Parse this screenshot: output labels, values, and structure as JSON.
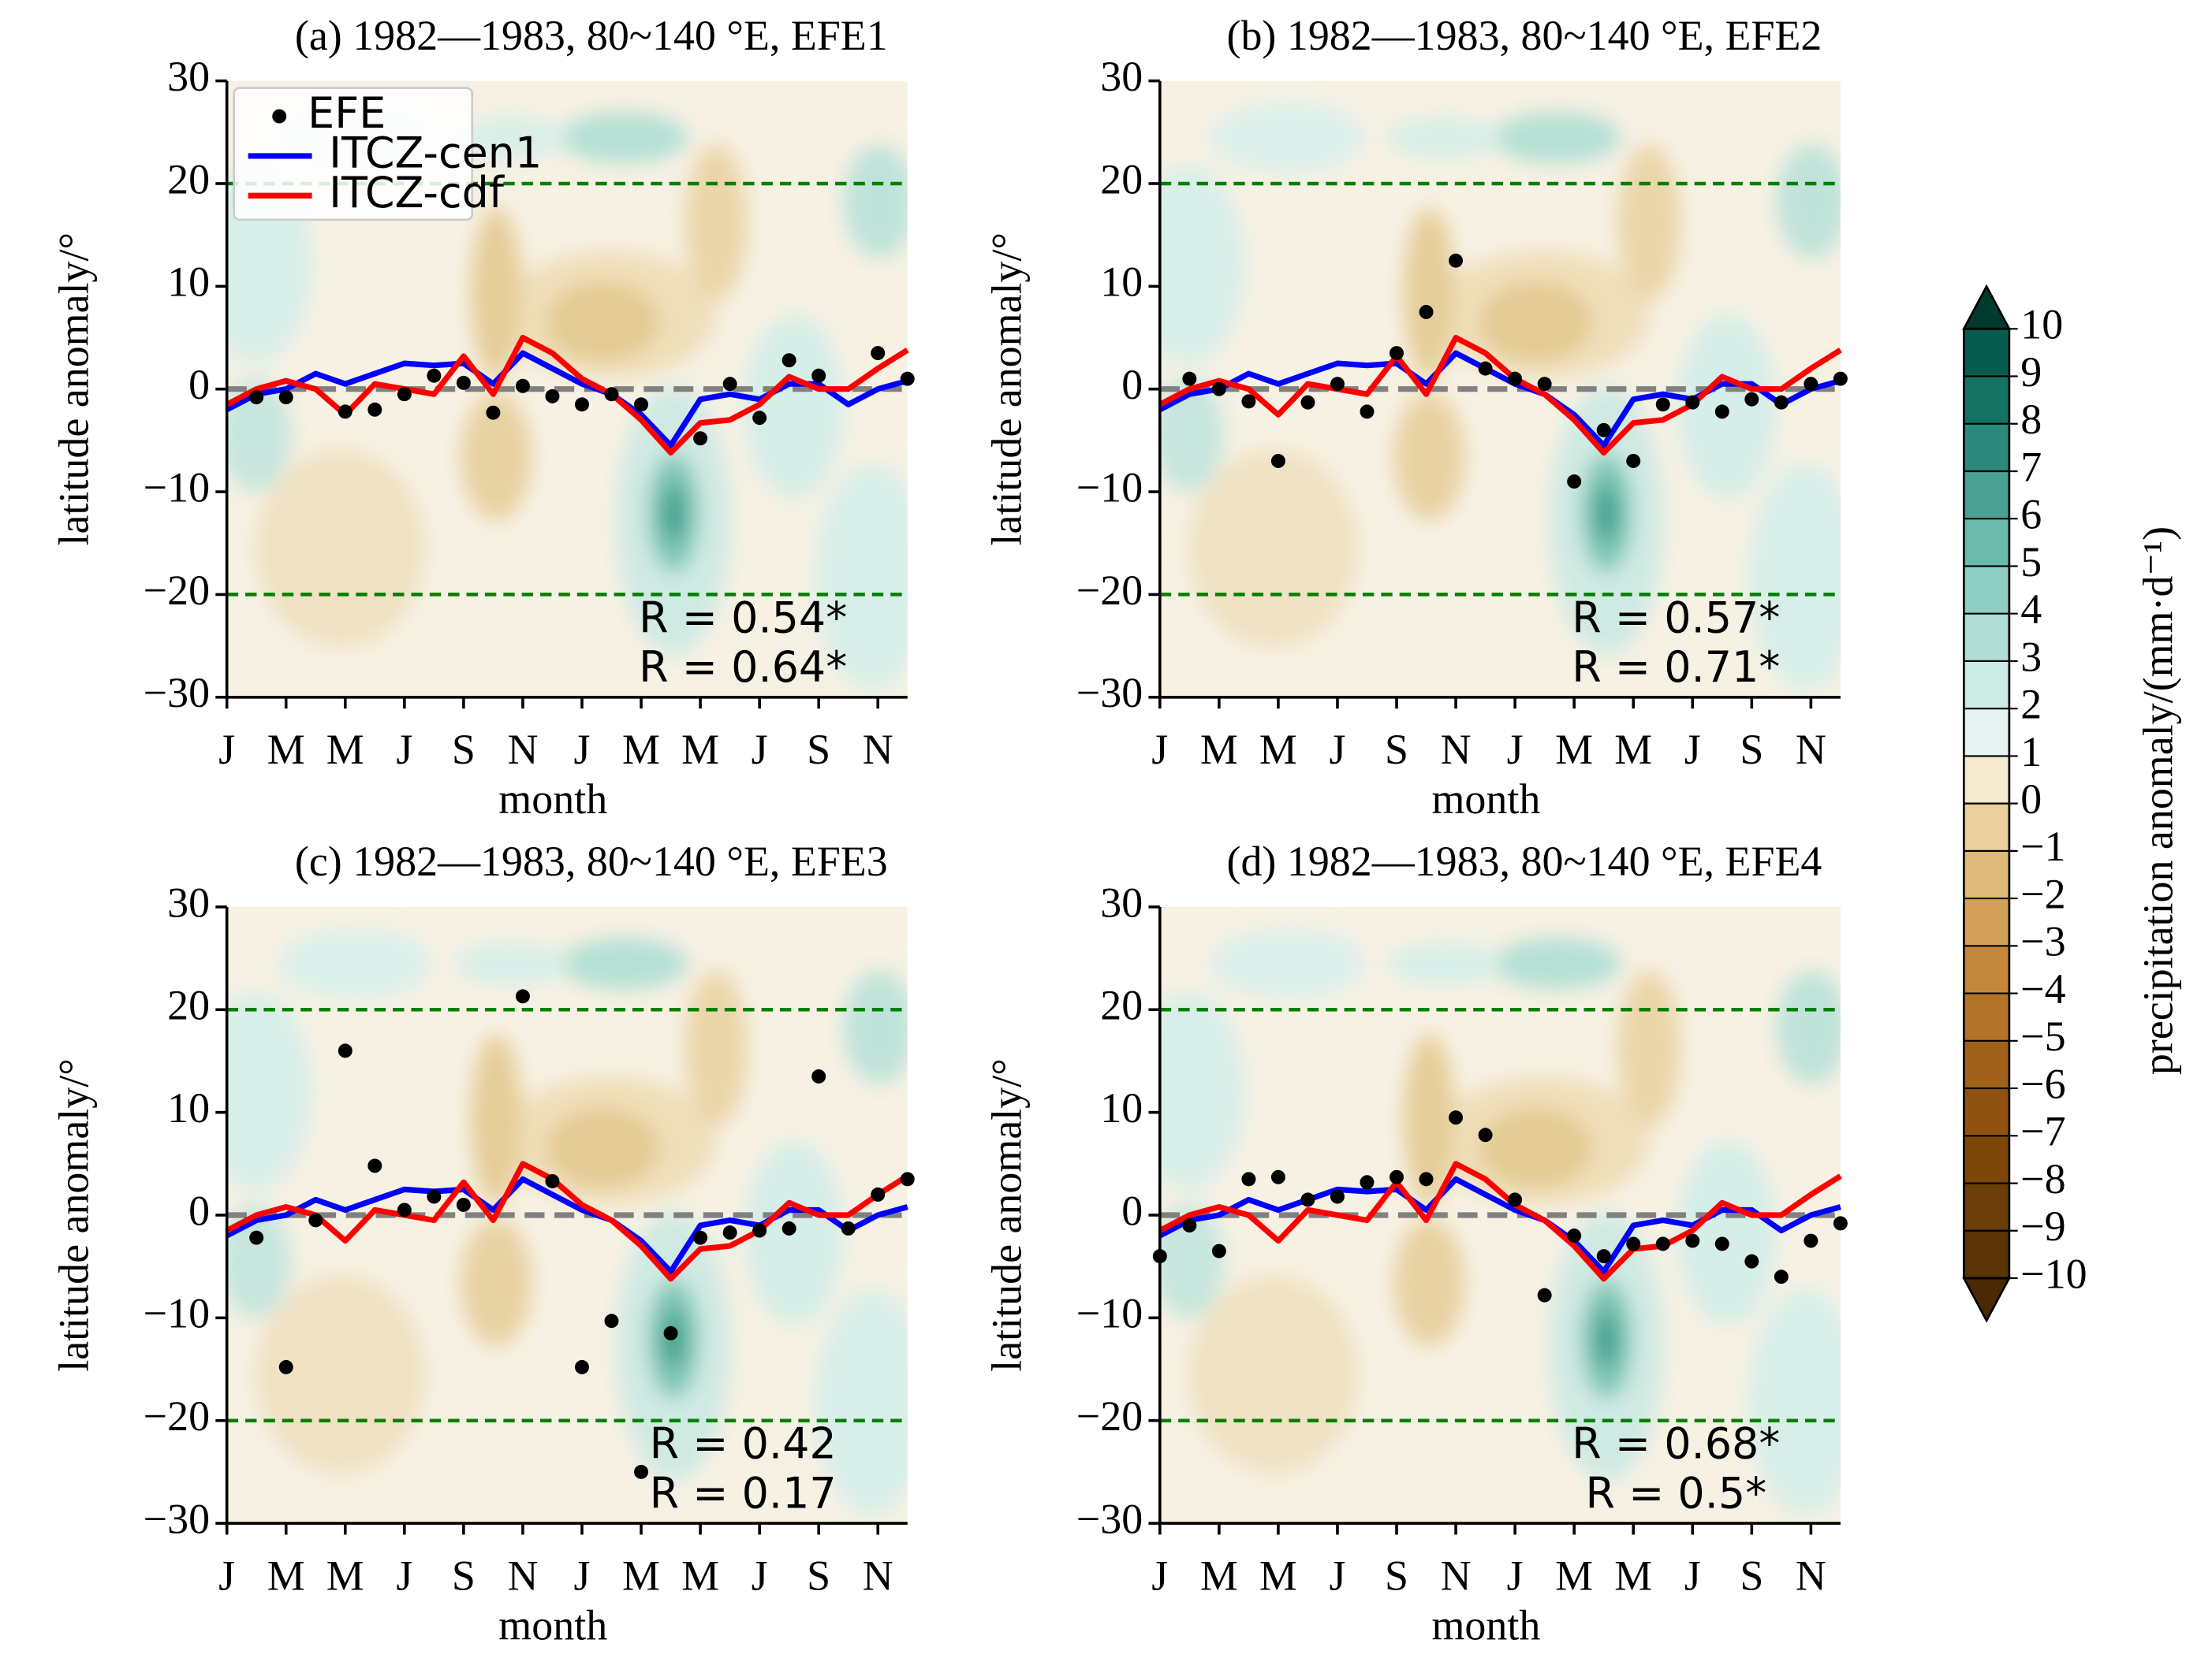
{
  "chart_data": [
    {
      "type": "line",
      "title": "(a) 1982—1983, 80~140 °E, EFE1",
      "x_label": "month",
      "y_label": "latitude anomaly/°",
      "categories": [
        "J",
        null,
        "M",
        null,
        "M",
        null,
        "J",
        null,
        "S",
        null,
        "N",
        null,
        "J",
        null,
        "M",
        null,
        "M",
        null,
        "J",
        null,
        "S",
        null,
        "N",
        null
      ],
      "ylim": [
        -30,
        30
      ],
      "yticks": [
        {
          "value": -30,
          "label": "−30"
        },
        {
          "value": -20,
          "label": "−20"
        },
        {
          "value": -10,
          "label": "−10"
        },
        0,
        10,
        20,
        30
      ],
      "series": [
        {
          "name": "EFE",
          "type": "scatter",
          "color": "#000000",
          "values": [
            null,
            -0.8,
            -0.8,
            null,
            -2.2,
            -2,
            -0.5,
            1.3,
            0.6,
            -2.3,
            0.3,
            -0.7,
            -1.5,
            -0.5,
            -1.5,
            null,
            -4.8,
            0.5,
            -2.8,
            2.8,
            1.3,
            null,
            3.5,
            1
          ]
        },
        {
          "name": "ITCZ-cen1",
          "color": "#0000ff",
          "values": [
            -2,
            -0.5,
            0,
            1.5,
            0.5,
            1.5,
            2.5,
            2.3,
            2.5,
            0.5,
            3.5,
            2,
            0.5,
            -0.5,
            -2.5,
            -5.5,
            -1,
            -0.5,
            -1,
            0.5,
            0.5,
            -1.5,
            0,
            0.8
          ]
        },
        {
          "name": "ITCZ-cdf",
          "color": "#ff0000",
          "values": [
            -1.5,
            0,
            0.8,
            0,
            -2.5,
            0.5,
            0,
            -0.5,
            3.2,
            -0.5,
            5,
            3.5,
            1,
            -0.5,
            -3,
            -6.2,
            -3.3,
            -3,
            -1.5,
            1.2,
            0,
            0,
            2,
            3.8
          ]
        }
      ],
      "reference_lines": [
        {
          "value": 20,
          "color": "#008000"
        },
        {
          "value": -20,
          "color": "#008000"
        },
        {
          "value": 0,
          "color": "#808080"
        }
      ],
      "annotations": [
        {
          "text": "R = 0.54*",
          "color": "#0000ff"
        },
        {
          "text": "R = 0.64*",
          "color": "#ff0000"
        }
      ],
      "legend": "upper left"
    },
    {
      "type": "line",
      "title": "(b) 1982—1983, 80~140 °E, EFE2",
      "x_label": "month",
      "y_label": "latitude anomaly/°",
      "categories": [
        "J",
        null,
        "M",
        null,
        "M",
        null,
        "J",
        null,
        "S",
        null,
        "N",
        null,
        "J",
        null,
        "M",
        null,
        "M",
        null,
        "J",
        null,
        "S",
        null,
        "N",
        null
      ],
      "ylim": [
        -30,
        30
      ],
      "yticks": [
        {
          "value": -30,
          "label": "−30"
        },
        {
          "value": -20,
          "label": "−20"
        },
        {
          "value": -10,
          "label": "−10"
        },
        0,
        10,
        20,
        30
      ],
      "series": [
        {
          "type": "scatter",
          "color": "#000000",
          "values": [
            null,
            1,
            0,
            -1.2,
            -7,
            -1.3,
            0.5,
            -2.2,
            3.5,
            7.5,
            12.5,
            2,
            1,
            0.5,
            -9,
            -4,
            -7,
            -1.5,
            -1.3,
            -2.2,
            -1,
            -1.3,
            0.5,
            1
          ]
        },
        {
          "color": "#0000ff",
          "values": [
            -2,
            -0.5,
            0,
            1.5,
            0.5,
            1.5,
            2.5,
            2.3,
            2.5,
            0.5,
            3.5,
            2,
            0.5,
            -0.5,
            -2.5,
            -5.5,
            -1,
            -0.5,
            -1,
            0.5,
            0.5,
            -1.5,
            0,
            0.8
          ]
        },
        {
          "color": "#ff0000",
          "values": [
            -1.5,
            0,
            0.8,
            0,
            -2.5,
            0.5,
            0,
            -0.5,
            3.2,
            -0.5,
            5,
            3.5,
            1,
            -0.5,
            -3,
            -6.2,
            -3.3,
            -3,
            -1.5,
            1.2,
            0,
            0,
            2,
            3.8
          ]
        }
      ],
      "reference_lines": [
        {
          "value": 20,
          "color": "#008000"
        },
        {
          "value": -20,
          "color": "#008000"
        },
        {
          "value": 0,
          "color": "#808080"
        }
      ],
      "annotations": [
        {
          "text": "R = 0.57*",
          "color": "#0000ff"
        },
        {
          "text": "R = 0.71*",
          "color": "#ff0000"
        }
      ]
    },
    {
      "type": "line",
      "title": "(c) 1982—1983, 80~140 °E, EFE3",
      "x_label": "month",
      "y_label": "latitude anomaly/°",
      "categories": [
        "J",
        null,
        "M",
        null,
        "M",
        null,
        "J",
        null,
        "S",
        null,
        "N",
        null,
        "J",
        null,
        "M",
        null,
        "M",
        null,
        "J",
        null,
        "S",
        null,
        "N",
        null
      ],
      "ylim": [
        -30,
        30
      ],
      "yticks": [
        {
          "value": -30,
          "label": "−30"
        },
        {
          "value": -20,
          "label": "−20"
        },
        {
          "value": -10,
          "label": "−10"
        },
        0,
        10,
        20,
        30
      ],
      "series": [
        {
          "type": "scatter",
          "color": "#000000",
          "values": [
            null,
            -2.2,
            -14.8,
            -0.5,
            16,
            4.8,
            0.5,
            1.8,
            1,
            null,
            21.3,
            3.3,
            -14.8,
            -10.3,
            -25,
            -11.5,
            -2.2,
            -1.7,
            -1.5,
            -1.3,
            13.5,
            -1.3,
            2,
            3.5
          ]
        },
        {
          "color": "#0000ff",
          "values": [
            -2,
            -0.5,
            0,
            1.5,
            0.5,
            1.5,
            2.5,
            2.3,
            2.5,
            0.5,
            3.5,
            2,
            0.5,
            -0.5,
            -2.5,
            -5.5,
            -1,
            -0.5,
            -1,
            0.5,
            0.5,
            -1.5,
            0,
            0.8
          ]
        },
        {
          "color": "#ff0000",
          "values": [
            -1.5,
            0,
            0.8,
            0,
            -2.5,
            0.5,
            0,
            -0.5,
            3.2,
            -0.5,
            5,
            3.5,
            1,
            -0.5,
            -3,
            -6.2,
            -3.3,
            -3,
            -1.5,
            1.2,
            0,
            0,
            2,
            3.8
          ]
        }
      ],
      "reference_lines": [
        {
          "value": 20,
          "color": "#008000"
        },
        {
          "value": -20,
          "color": "#008000"
        },
        {
          "value": 0,
          "color": "#808080"
        }
      ],
      "annotations": [
        {
          "text": "R = 0.42",
          "color": "#0000ff"
        },
        {
          "text": "R = 0.17",
          "color": "#ff0000"
        }
      ]
    },
    {
      "type": "line",
      "title": "(d) 1982—1983, 80~140 °E, EFE4",
      "x_label": "month",
      "y_label": "latitude anomaly/°",
      "categories": [
        "J",
        null,
        "M",
        null,
        "M",
        null,
        "J",
        null,
        "S",
        null,
        "N",
        null,
        "J",
        null,
        "M",
        null,
        "M",
        null,
        "J",
        null,
        "S",
        null,
        "N",
        null
      ],
      "ylim": [
        -30,
        30
      ],
      "yticks": [
        {
          "value": -30,
          "label": "−30"
        },
        {
          "value": -20,
          "label": "−20"
        },
        {
          "value": -10,
          "label": "−10"
        },
        0,
        10,
        20,
        30
      ],
      "series": [
        {
          "type": "scatter",
          "color": "#000000",
          "values": [
            -4,
            -1,
            -3.5,
            3.5,
            3.7,
            1.5,
            1.8,
            3.2,
            3.7,
            3.5,
            9.5,
            7.8,
            1.5,
            -7.8,
            -2,
            -4,
            -2.8,
            -2.8,
            -2.5,
            -2.8,
            -4.5,
            -6,
            -2.5,
            -0.8
          ]
        },
        {
          "color": "#0000ff",
          "values": [
            -2,
            -0.5,
            0,
            1.5,
            0.5,
            1.5,
            2.5,
            2.3,
            2.5,
            0.5,
            3.5,
            2,
            0.5,
            -0.5,
            -2.5,
            -5.5,
            -1,
            -0.5,
            -1,
            0.5,
            0.5,
            -1.5,
            0,
            0.8
          ]
        },
        {
          "color": "#ff0000",
          "values": [
            -1.5,
            0,
            0.8,
            0,
            -2.5,
            0.5,
            0,
            -0.5,
            3.2,
            -0.5,
            5,
            3.5,
            1,
            -0.5,
            -3,
            -6.2,
            -3.3,
            -3,
            -1.5,
            1.2,
            0,
            0,
            2,
            3.8
          ]
        }
      ],
      "reference_lines": [
        {
          "value": 20,
          "color": "#008000"
        },
        {
          "value": -20,
          "color": "#008000"
        },
        {
          "value": 0,
          "color": "#808080"
        }
      ],
      "annotations": [
        {
          "text": "R = 0.68*",
          "color": "#0000ff"
        },
        {
          "text": "R = 0.5*",
          "color": "#ff0000"
        }
      ]
    }
  ],
  "colorbar": {
    "label": "precipitation anomaly/(mm·d⁻¹)",
    "extend": "both",
    "ticks": [
      {
        "value": -10,
        "label": "−10"
      },
      {
        "value": -9,
        "label": "−9"
      },
      {
        "value": -8,
        "label": "−8"
      },
      {
        "value": -7,
        "label": "−7"
      },
      {
        "value": -6,
        "label": "−6"
      },
      {
        "value": -5,
        "label": "−5"
      },
      {
        "value": -4,
        "label": "−4"
      },
      {
        "value": -3,
        "label": "−3"
      },
      {
        "value": -2,
        "label": "−2"
      },
      {
        "value": -1,
        "label": "−1"
      },
      0,
      1,
      2,
      3,
      4,
      5,
      6,
      7,
      8,
      9,
      10
    ],
    "colors": [
      "#4a2a04",
      "#5a3306",
      "#6b3d08",
      "#7d470a",
      "#8f530f",
      "#a0621a",
      "#b37429",
      "#c4883d",
      "#d3a05a",
      "#dfb97a",
      "#ebd09d",
      "#f4ead0",
      "#e6f3f0",
      "#cdebe5",
      "#b0ddd5",
      "#8fcec2",
      "#6bbaab",
      "#4aa193",
      "#2c897b",
      "#157364",
      "#065d4f",
      "#013a2f"
    ]
  }
}
